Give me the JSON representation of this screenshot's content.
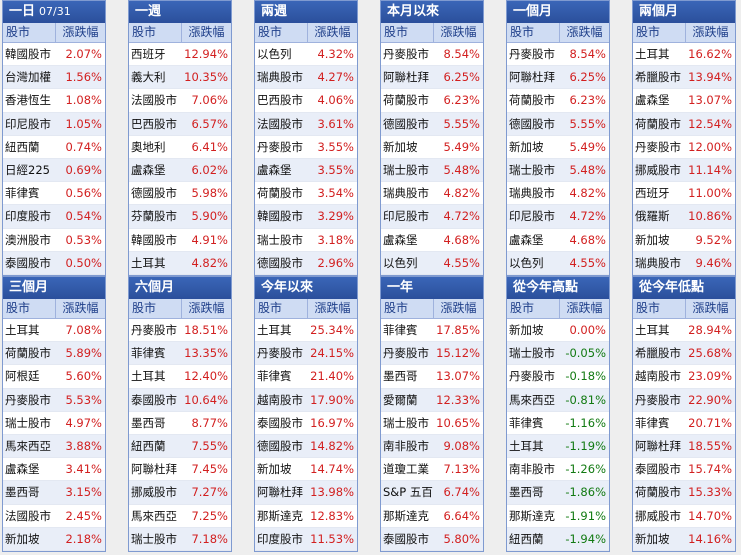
{
  "header": {
    "name_label": "股市",
    "change_label": "漲跌幅"
  },
  "panels": [
    {
      "title": "一日",
      "date": "07/31",
      "rows": [
        {
          "name": "韓國股市",
          "value": "2.07%",
          "dir": "up"
        },
        {
          "name": "台灣加權",
          "value": "1.56%",
          "dir": "up"
        },
        {
          "name": "香港恆生",
          "value": "1.08%",
          "dir": "up"
        },
        {
          "name": "印尼股市",
          "value": "1.05%",
          "dir": "up"
        },
        {
          "name": "紐西蘭",
          "value": "0.74%",
          "dir": "up"
        },
        {
          "name": "日經225",
          "value": "0.69%",
          "dir": "up"
        },
        {
          "name": "菲律賓",
          "value": "0.56%",
          "dir": "up"
        },
        {
          "name": "印度股市",
          "value": "0.54%",
          "dir": "up"
        },
        {
          "name": "澳洲股市",
          "value": "0.53%",
          "dir": "up"
        },
        {
          "name": "泰國股市",
          "value": "0.50%",
          "dir": "up"
        }
      ]
    },
    {
      "title": "一週",
      "date": "",
      "rows": [
        {
          "name": "西班牙",
          "value": "12.94%",
          "dir": "up"
        },
        {
          "name": "義大利",
          "value": "10.35%",
          "dir": "up"
        },
        {
          "name": "法國股市",
          "value": "7.06%",
          "dir": "up"
        },
        {
          "name": "巴西股市",
          "value": "6.57%",
          "dir": "up"
        },
        {
          "name": "奧地利",
          "value": "6.41%",
          "dir": "up"
        },
        {
          "name": "盧森堡",
          "value": "6.02%",
          "dir": "up"
        },
        {
          "name": "德國股市",
          "value": "5.98%",
          "dir": "up"
        },
        {
          "name": "芬蘭股市",
          "value": "5.90%",
          "dir": "up"
        },
        {
          "name": "韓國股市",
          "value": "4.91%",
          "dir": "up"
        },
        {
          "name": "土耳其",
          "value": "4.82%",
          "dir": "up"
        }
      ]
    },
    {
      "title": "兩週",
      "date": "",
      "rows": [
        {
          "name": "以色列",
          "value": "4.32%",
          "dir": "up"
        },
        {
          "name": "瑞典股市",
          "value": "4.27%",
          "dir": "up"
        },
        {
          "name": "巴西股市",
          "value": "4.06%",
          "dir": "up"
        },
        {
          "name": "法國股市",
          "value": "3.61%",
          "dir": "up"
        },
        {
          "name": "丹麥股市",
          "value": "3.55%",
          "dir": "up"
        },
        {
          "name": "盧森堡",
          "value": "3.55%",
          "dir": "up"
        },
        {
          "name": "荷蘭股市",
          "value": "3.54%",
          "dir": "up"
        },
        {
          "name": "韓國股市",
          "value": "3.29%",
          "dir": "up"
        },
        {
          "name": "瑞士股市",
          "value": "3.18%",
          "dir": "up"
        },
        {
          "name": "德國股市",
          "value": "2.96%",
          "dir": "up"
        }
      ]
    },
    {
      "title": "本月以來",
      "date": "",
      "rows": [
        {
          "name": "丹麥股市",
          "value": "8.54%",
          "dir": "up"
        },
        {
          "name": "阿聯杜拜",
          "value": "6.25%",
          "dir": "up"
        },
        {
          "name": "荷蘭股市",
          "value": "6.23%",
          "dir": "up"
        },
        {
          "name": "德國股市",
          "value": "5.55%",
          "dir": "up"
        },
        {
          "name": "新加坡",
          "value": "5.49%",
          "dir": "up"
        },
        {
          "name": "瑞士股市",
          "value": "5.48%",
          "dir": "up"
        },
        {
          "name": "瑞典股市",
          "value": "4.82%",
          "dir": "up"
        },
        {
          "name": "印尼股市",
          "value": "4.72%",
          "dir": "up"
        },
        {
          "name": "盧森堡",
          "value": "4.68%",
          "dir": "up"
        },
        {
          "name": "以色列",
          "value": "4.55%",
          "dir": "up"
        }
      ]
    },
    {
      "title": "一個月",
      "date": "",
      "rows": [
        {
          "name": "丹麥股市",
          "value": "8.54%",
          "dir": "up"
        },
        {
          "name": "阿聯杜拜",
          "value": "6.25%",
          "dir": "up"
        },
        {
          "name": "荷蘭股市",
          "value": "6.23%",
          "dir": "up"
        },
        {
          "name": "德國股市",
          "value": "5.55%",
          "dir": "up"
        },
        {
          "name": "新加坡",
          "value": "5.49%",
          "dir": "up"
        },
        {
          "name": "瑞士股市",
          "value": "5.48%",
          "dir": "up"
        },
        {
          "name": "瑞典股市",
          "value": "4.82%",
          "dir": "up"
        },
        {
          "name": "印尼股市",
          "value": "4.72%",
          "dir": "up"
        },
        {
          "name": "盧森堡",
          "value": "4.68%",
          "dir": "up"
        },
        {
          "name": "以色列",
          "value": "4.55%",
          "dir": "up"
        }
      ]
    },
    {
      "title": "兩個月",
      "date": "",
      "rows": [
        {
          "name": "土耳其",
          "value": "16.62%",
          "dir": "up"
        },
        {
          "name": "希臘股市",
          "value": "13.94%",
          "dir": "up"
        },
        {
          "name": "盧森堡",
          "value": "13.07%",
          "dir": "up"
        },
        {
          "name": "荷蘭股市",
          "value": "12.54%",
          "dir": "up"
        },
        {
          "name": "丹麥股市",
          "value": "12.00%",
          "dir": "up"
        },
        {
          "name": "挪威股市",
          "value": "11.14%",
          "dir": "up"
        },
        {
          "name": "西班牙",
          "value": "11.00%",
          "dir": "up"
        },
        {
          "name": "俄羅斯",
          "value": "10.86%",
          "dir": "up"
        },
        {
          "name": "新加坡",
          "value": "9.52%",
          "dir": "up"
        },
        {
          "name": "瑞典股市",
          "value": "9.46%",
          "dir": "up"
        }
      ]
    },
    {
      "title": "三個月",
      "date": "",
      "rows": [
        {
          "name": "土耳其",
          "value": "7.08%",
          "dir": "up"
        },
        {
          "name": "荷蘭股市",
          "value": "5.89%",
          "dir": "up"
        },
        {
          "name": "阿根廷",
          "value": "5.60%",
          "dir": "up"
        },
        {
          "name": "丹麥股市",
          "value": "5.53%",
          "dir": "up"
        },
        {
          "name": "瑞士股市",
          "value": "4.97%",
          "dir": "up"
        },
        {
          "name": "馬來西亞",
          "value": "3.88%",
          "dir": "up"
        },
        {
          "name": "盧森堡",
          "value": "3.41%",
          "dir": "up"
        },
        {
          "name": "墨西哥",
          "value": "3.15%",
          "dir": "up"
        },
        {
          "name": "法國股市",
          "value": "2.45%",
          "dir": "up"
        },
        {
          "name": "新加坡",
          "value": "2.18%",
          "dir": "up"
        }
      ]
    },
    {
      "title": "六個月",
      "date": "",
      "rows": [
        {
          "name": "丹麥股市",
          "value": "18.51%",
          "dir": "up"
        },
        {
          "name": "菲律賓",
          "value": "13.35%",
          "dir": "up"
        },
        {
          "name": "土耳其",
          "value": "12.40%",
          "dir": "up"
        },
        {
          "name": "泰國股市",
          "value": "10.64%",
          "dir": "up"
        },
        {
          "name": "墨西哥",
          "value": "8.77%",
          "dir": "up"
        },
        {
          "name": "紐西蘭",
          "value": "7.55%",
          "dir": "up"
        },
        {
          "name": "阿聯杜拜",
          "value": "7.45%",
          "dir": "up"
        },
        {
          "name": "挪威股市",
          "value": "7.27%",
          "dir": "up"
        },
        {
          "name": "馬來西亞",
          "value": "7.25%",
          "dir": "up"
        },
        {
          "name": "瑞士股市",
          "value": "7.18%",
          "dir": "up"
        }
      ]
    },
    {
      "title": "今年以來",
      "date": "",
      "rows": [
        {
          "name": "土耳其",
          "value": "25.34%",
          "dir": "up"
        },
        {
          "name": "丹麥股市",
          "value": "24.15%",
          "dir": "up"
        },
        {
          "name": "菲律賓",
          "value": "21.40%",
          "dir": "up"
        },
        {
          "name": "越南股市",
          "value": "17.90%",
          "dir": "up"
        },
        {
          "name": "泰國股市",
          "value": "16.97%",
          "dir": "up"
        },
        {
          "name": "德國股市",
          "value": "14.82%",
          "dir": "up"
        },
        {
          "name": "新加坡",
          "value": "14.74%",
          "dir": "up"
        },
        {
          "name": "阿聯杜拜",
          "value": "13.98%",
          "dir": "up"
        },
        {
          "name": "那斯達克",
          "value": "12.83%",
          "dir": "up"
        },
        {
          "name": "印度股市",
          "value": "11.53%",
          "dir": "up"
        }
      ]
    },
    {
      "title": "一年",
      "date": "",
      "rows": [
        {
          "name": "菲律賓",
          "value": "17.85%",
          "dir": "up"
        },
        {
          "name": "丹麥股市",
          "value": "15.12%",
          "dir": "up"
        },
        {
          "name": "墨西哥",
          "value": "13.07%",
          "dir": "up"
        },
        {
          "name": "愛爾蘭",
          "value": "12.33%",
          "dir": "up"
        },
        {
          "name": "瑞士股市",
          "value": "10.65%",
          "dir": "up"
        },
        {
          "name": "南非股市",
          "value": "9.08%",
          "dir": "up"
        },
        {
          "name": "道瓊工業",
          "value": "7.13%",
          "dir": "up"
        },
        {
          "name": "S&P 五百",
          "value": "6.74%",
          "dir": "up"
        },
        {
          "name": "那斯達克",
          "value": "6.64%",
          "dir": "up"
        },
        {
          "name": "泰國股市",
          "value": "5.80%",
          "dir": "up"
        }
      ]
    },
    {
      "title": "從今年高點",
      "date": "",
      "rows": [
        {
          "name": "新加坡",
          "value": "0.00%",
          "dir": "up"
        },
        {
          "name": "瑞士股市",
          "value": "-0.05%",
          "dir": "down"
        },
        {
          "name": "丹麥股市",
          "value": "-0.18%",
          "dir": "down"
        },
        {
          "name": "馬來西亞",
          "value": "-0.81%",
          "dir": "down"
        },
        {
          "name": "菲律賓",
          "value": "-1.16%",
          "dir": "down"
        },
        {
          "name": "土耳其",
          "value": "-1.19%",
          "dir": "down"
        },
        {
          "name": "南非股市",
          "value": "-1.26%",
          "dir": "down"
        },
        {
          "name": "墨西哥",
          "value": "-1.86%",
          "dir": "down"
        },
        {
          "name": "那斯達克",
          "value": "-1.91%",
          "dir": "down"
        },
        {
          "name": "紐西蘭",
          "value": "-1.94%",
          "dir": "down"
        }
      ]
    },
    {
      "title": "從今年低點",
      "date": "",
      "rows": [
        {
          "name": "土耳其",
          "value": "28.94%",
          "dir": "up"
        },
        {
          "name": "希臘股市",
          "value": "25.68%",
          "dir": "up"
        },
        {
          "name": "越南股市",
          "value": "23.09%",
          "dir": "up"
        },
        {
          "name": "丹麥股市",
          "value": "22.90%",
          "dir": "up"
        },
        {
          "name": "菲律賓",
          "value": "20.71%",
          "dir": "up"
        },
        {
          "name": "阿聯杜拜",
          "value": "18.55%",
          "dir": "up"
        },
        {
          "name": "泰國股市",
          "value": "15.74%",
          "dir": "up"
        },
        {
          "name": "荷蘭股市",
          "value": "15.33%",
          "dir": "up"
        },
        {
          "name": "挪威股市",
          "value": "14.70%",
          "dir": "up"
        },
        {
          "name": "新加坡",
          "value": "14.16%",
          "dir": "up"
        }
      ]
    }
  ]
}
